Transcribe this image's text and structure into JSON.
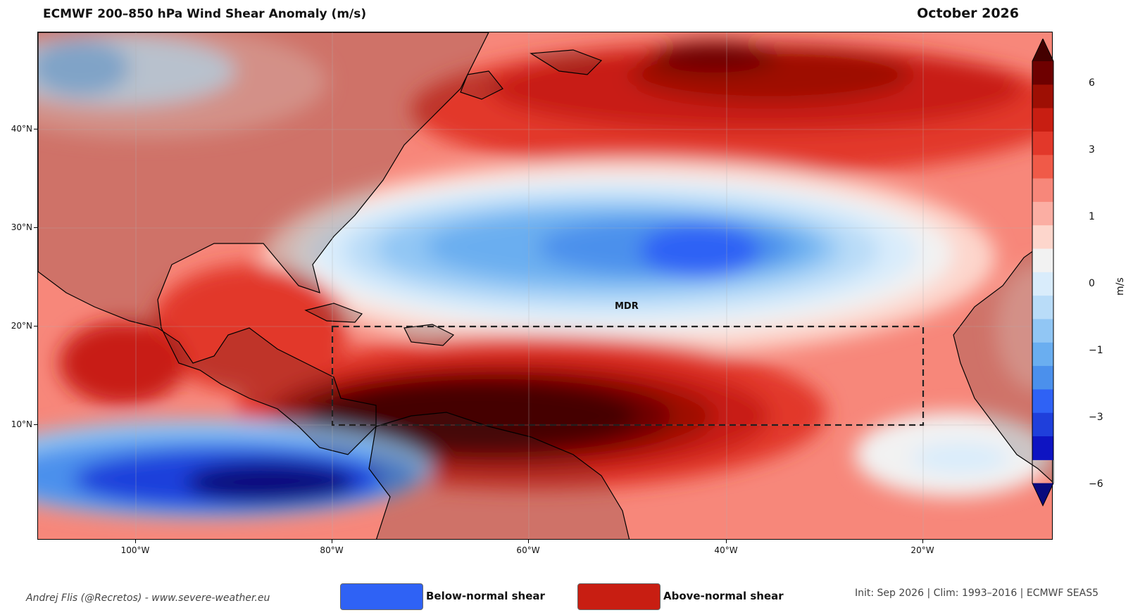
{
  "header": {
    "title": "ECMWF 200–850 hPa Wind Shear Anomaly  (m/s)",
    "date": "October 2026"
  },
  "map": {
    "lat_labels": [
      "40°N",
      "30°N",
      "20°N",
      "10°N"
    ],
    "lon_labels": [
      "100°W",
      "80°W",
      "60°W",
      "40°W",
      "20°W"
    ],
    "box_label": "MDR"
  },
  "colorbar": {
    "unit": "m/s",
    "tick_labels": [
      "6",
      "3",
      "1",
      "0",
      "−1",
      "−3",
      "−6"
    ],
    "colors": [
      "#440000",
      "#6e0000",
      "#9e0f04",
      "#c81e12",
      "#e2382a",
      "#f05a48",
      "#f7877a",
      "#fbaea3",
      "#fdd6cc",
      "#f2f2f2",
      "#d9ecfb",
      "#b9dcf8",
      "#91c6f4",
      "#6aaef0",
      "#4b90ec",
      "#2f62f5",
      "#1f3fdb",
      "#0e14c2",
      "#0a0a7e"
    ]
  },
  "legend": {
    "below_label": "Below-normal shear",
    "above_label": "Above-normal shear",
    "below_color": "#2f62f5",
    "above_color": "#c81e12"
  },
  "footer": {
    "credit": "Andrej Flis (@Recretos) - www.severe-weather.eu",
    "meta": "Init: Sep 2026  |  Clim: 1993–2016  |  ECMWF SEAS5"
  }
}
